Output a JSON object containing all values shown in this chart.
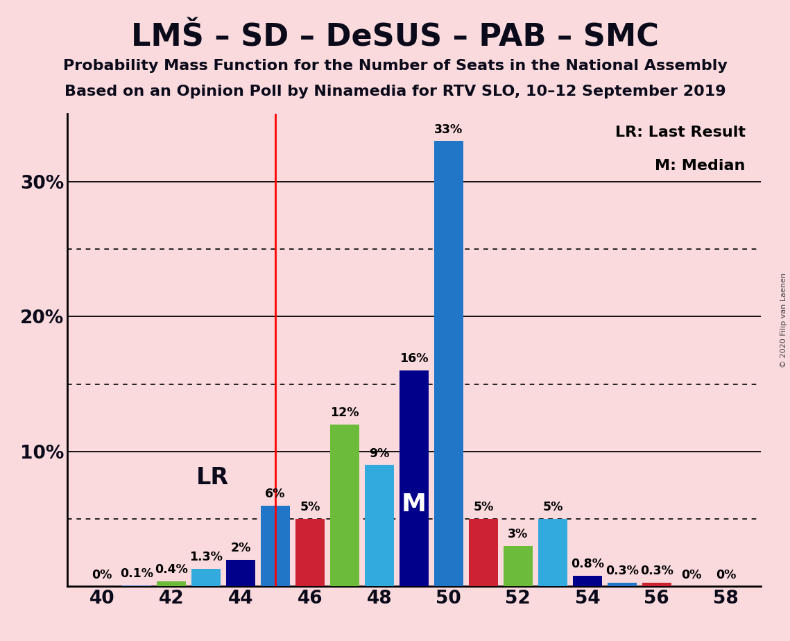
{
  "title": "LMŠ – SD – DeSUS – PAB – SMC",
  "subtitle1": "Probability Mass Function for the Number of Seats in the National Assembly",
  "subtitle2": "Based on an Opinion Poll by Ninamedia for RTV SLO, 10–12 September 2019",
  "copyright": "© 2020 Filip van Laenen",
  "background_color": "#FADADD",
  "seats": [
    40,
    41,
    42,
    43,
    44,
    45,
    46,
    47,
    48,
    49,
    50,
    51,
    52,
    53,
    54,
    55,
    56,
    57,
    58
  ],
  "values": [
    0.0,
    0.1,
    0.4,
    1.3,
    2.0,
    6.0,
    5.0,
    12.0,
    9.0,
    16.0,
    33.0,
    5.0,
    3.0,
    5.0,
    0.8,
    0.3,
    0.3,
    0.0,
    0.0
  ],
  "colors": [
    "#2176C7",
    "#2176C7",
    "#6DBB3A",
    "#33AADD",
    "#00008B",
    "#2176C7",
    "#CC2233",
    "#6DBB3A",
    "#33AADD",
    "#00008B",
    "#2176C7",
    "#CC2233",
    "#6DBB3A",
    "#33AADD",
    "#00008B",
    "#2176C7",
    "#CC2233",
    "#2176C7",
    "#CC2233"
  ],
  "bar_labels": [
    "0%",
    "0.1%",
    "0.4%",
    "1.3%",
    "2%",
    "6%",
    "5%",
    "12%",
    "9%",
    "16%",
    "33%",
    "5%",
    "3%",
    "5%",
    "0.8%",
    "0.3%",
    "0.3%",
    "0%",
    "0%"
  ],
  "lr_seat": 45,
  "median_seat": 49,
  "lr_label": "LR",
  "median_label": "M",
  "legend_lr": "LR: Last Result",
  "legend_m": "M: Median",
  "solid_gridlines": [
    10,
    20,
    30
  ],
  "dotted_gridlines": [
    5,
    15,
    25
  ],
  "xlim": [
    39.0,
    59.0
  ],
  "ylim": [
    0,
    35
  ],
  "xticks": [
    40,
    42,
    44,
    46,
    48,
    50,
    52,
    54,
    56,
    58
  ],
  "yticks": [
    10,
    20,
    30
  ],
  "ytick_labels": [
    "10%",
    "20%",
    "30%"
  ]
}
